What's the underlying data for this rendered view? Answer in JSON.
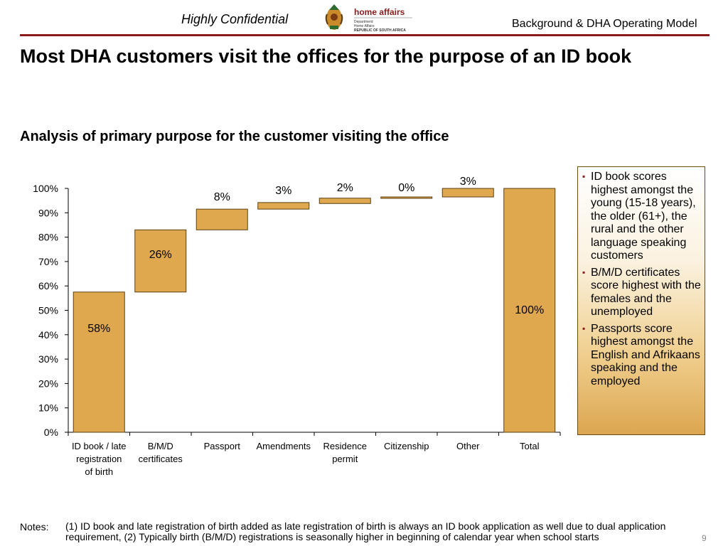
{
  "header": {
    "confidential": "Highly Confidential",
    "logo_text": "home affairs",
    "logo_line1": "Department:",
    "logo_line2": "Home Affairs",
    "logo_line3": "REPUBLIC OF SOUTH AFRICA",
    "section": "Background & DHA Operating Model"
  },
  "title": "Most DHA customers visit the offices for the purpose of an ID book",
  "subtitle": "Analysis of primary purpose for the customer visiting the office",
  "colors": {
    "bar": "#e0a84e",
    "rule": "#8b1a1a"
  },
  "chart_data": {
    "type": "bar",
    "categories": [
      [
        "ID book / late",
        "registration",
        "of birth"
      ],
      [
        "B/M/D",
        "certificates"
      ],
      [
        "Passport"
      ],
      [
        "Amendments"
      ],
      [
        "Residence",
        "permit"
      ],
      [
        "Citizenship"
      ],
      [
        "Other"
      ],
      [
        "Total"
      ]
    ],
    "values": [
      58,
      26,
      8,
      3,
      2,
      0,
      3,
      100
    ],
    "bottoms": [
      0,
      57.5,
      83,
      91.5,
      93.8,
      96,
      96.5,
      0
    ],
    "tops": [
      57.5,
      83,
      91.5,
      94.2,
      96,
      96.5,
      100,
      100
    ],
    "labels": [
      "58%",
      "26%",
      "8%",
      "3%",
      "2%",
      "0%",
      "3%",
      "100%"
    ],
    "ylim": [
      0,
      100
    ],
    "yticks": [
      "0%",
      "10%",
      "20%",
      "30%",
      "40%",
      "50%",
      "60%",
      "70%",
      "80%",
      "90%",
      "100%"
    ]
  },
  "sidebox": {
    "bullets": [
      "ID book scores highest amongst the young (15-18 years), the older (61+), the rural and the other language speaking customers",
      "B/M/D certificates score highest with the females and the unemployed",
      "Passports score highest amongst the English and Afrikaans speaking and the employed"
    ]
  },
  "notes": {
    "label": "Notes:",
    "text": "(1) ID book and late registration of birth added as late registration of birth is always an ID book application as well due to dual application requirement, (2) Typically birth (B/M/D) registrations is seasonally higher in beginning of calendar year when school starts"
  },
  "page_number": "9"
}
